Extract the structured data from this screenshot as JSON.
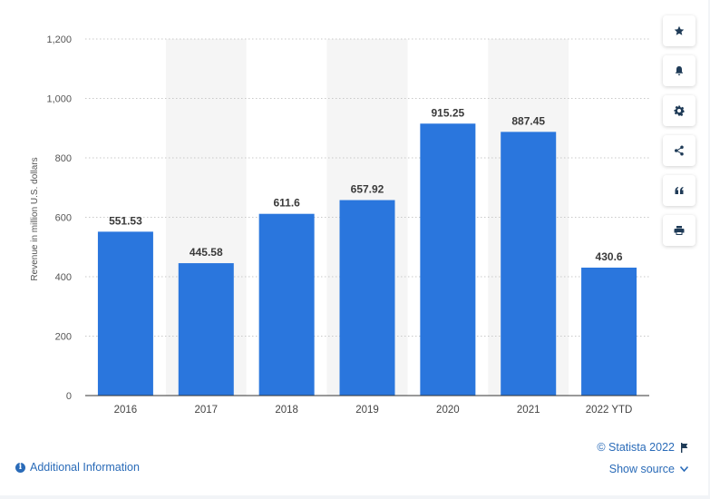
{
  "chart_data": {
    "type": "bar",
    "categories": [
      "2016",
      "2017",
      "2018",
      "2019",
      "2020",
      "2021",
      "2022 YTD"
    ],
    "values": [
      551.53,
      445.58,
      611.6,
      657.92,
      915.25,
      887.45,
      430.6
    ],
    "value_labels": [
      "551.53",
      "445.58",
      "611.6",
      "657.92",
      "915.25",
      "887.45",
      "430.6"
    ],
    "ylabel": "Revenue in million U.S. dollars",
    "xlabel": "",
    "ylim": [
      0,
      1200
    ],
    "yticks": [
      0,
      200,
      400,
      600,
      800,
      1000,
      1200
    ],
    "ytick_labels": [
      "0",
      "200",
      "400",
      "600",
      "800",
      "1,000",
      "1,200"
    ],
    "grid": true,
    "bar_color": "#2a76dd"
  },
  "toolbar": {
    "icons": [
      "star-icon",
      "bell-icon",
      "gear-icon",
      "share-icon",
      "quote-icon",
      "print-icon"
    ]
  },
  "footer": {
    "additional_info": "Additional Information",
    "credit": "© Statista 2022",
    "show_source": "Show source"
  },
  "colors": {
    "link": "#2a6bb8",
    "band": "#f5f5f5"
  }
}
